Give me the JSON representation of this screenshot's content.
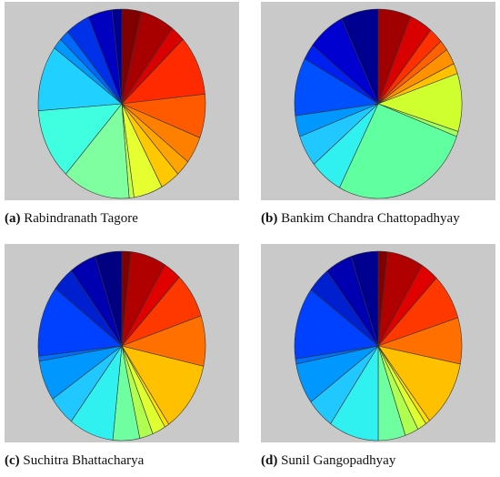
{
  "chart_data": [
    {
      "type": "pie",
      "label": "(a)",
      "title": "Rabindranath Tagore",
      "values": [
        4,
        7,
        3,
        11,
        8,
        5,
        3,
        4,
        6,
        1,
        14,
        13,
        12,
        2,
        2,
        5,
        5,
        2
      ],
      "colors": [
        "#800000",
        "#a80000",
        "#d80000",
        "#ff2a00",
        "#ff5a00",
        "#ff8000",
        "#ffa400",
        "#ffc800",
        "#e6ff30",
        "#c0ff50",
        "#80ffa0",
        "#40ffe0",
        "#20d0ff",
        "#0098ff",
        "#0068ff",
        "#0030e8",
        "#0000c0",
        "#000090"
      ]
    },
    {
      "type": "pie",
      "label": "(b)",
      "title": "Bankim Chandra Chattopadhyay",
      "values": [
        7,
        5,
        3,
        2,
        3,
        2,
        11,
        1,
        30,
        7,
        6,
        4,
        11,
        3,
        8,
        8
      ],
      "colors": [
        "#a00000",
        "#d80000",
        "#ff3000",
        "#ff6000",
        "#ff9000",
        "#ffc000",
        "#d0ff30",
        "#a0ff60",
        "#60ffa0",
        "#30f0f0",
        "#20c8ff",
        "#0098ff",
        "#0050ff",
        "#0020f0",
        "#0000d0",
        "#000090"
      ]
    },
    {
      "type": "pie",
      "label": "(c)",
      "title": "Suchitra Bhattacharya",
      "values": [
        2,
        8,
        4,
        9,
        10,
        14,
        1,
        3,
        3,
        6,
        10,
        6,
        8,
        1,
        14,
        5,
        6,
        6
      ],
      "colors": [
        "#800000",
        "#b00000",
        "#e00000",
        "#ff3800",
        "#ff7000",
        "#ffc000",
        "#ffe000",
        "#e0ff30",
        "#b0ff50",
        "#70ffa0",
        "#30f0f0",
        "#20c8ff",
        "#0098ff",
        "#0070ff",
        "#0040ff",
        "#0020d0",
        "#0000b0",
        "#000080"
      ]
    },
    {
      "type": "pie",
      "label": "(d)",
      "title": "Sunil Gangopadhyay",
      "values": [
        2,
        8,
        4,
        9,
        9,
        13,
        1,
        2,
        3,
        6,
        11,
        6,
        8,
        1,
        14,
        5,
        6,
        6
      ],
      "colors": [
        "#800000",
        "#b00000",
        "#e00000",
        "#ff3800",
        "#ff7000",
        "#ffc000",
        "#ffe000",
        "#e0ff30",
        "#b0ff50",
        "#70ffa0",
        "#30f0f0",
        "#20c8ff",
        "#0098ff",
        "#0070ff",
        "#0040ff",
        "#0020d0",
        "#0000b0",
        "#000090"
      ]
    }
  ]
}
